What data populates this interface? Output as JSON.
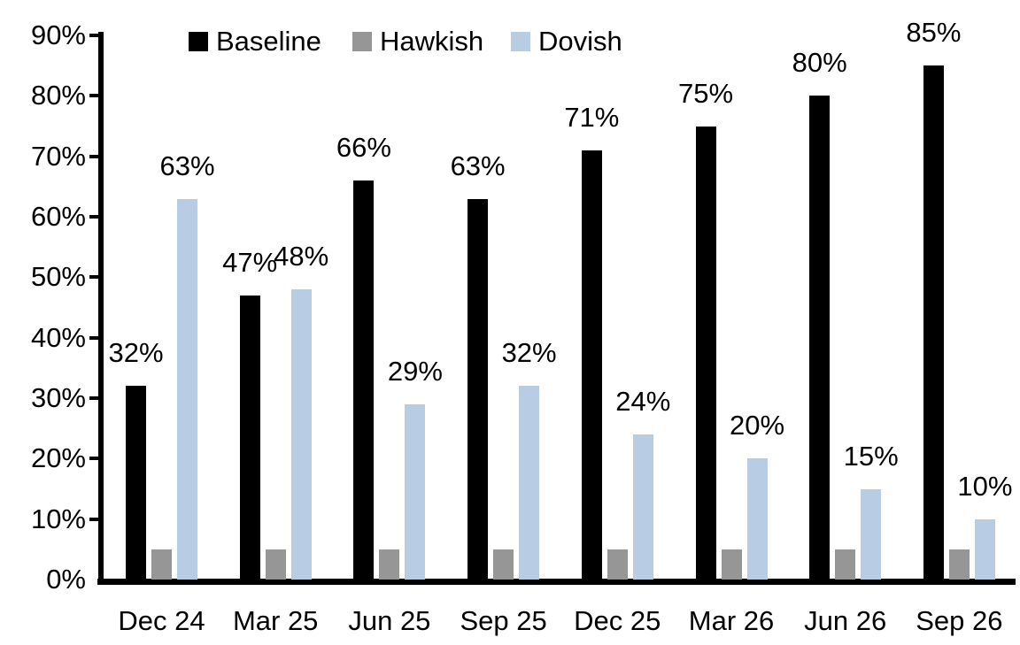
{
  "chart_data": {
    "type": "bar",
    "title": "",
    "xlabel": "",
    "ylabel": "",
    "categories": [
      "Dec 24",
      "Mar 25",
      "Jun 25",
      "Sep 25",
      "Dec 25",
      "Mar 26",
      "Jun 26",
      "Sep 26"
    ],
    "series": [
      {
        "name": "Baseline",
        "color": "#000000",
        "values": [
          32,
          47,
          66,
          63,
          71,
          75,
          80,
          85
        ],
        "data_labels": [
          "32%",
          "47%",
          "66%",
          "63%",
          "71%",
          "75%",
          "80%",
          "85%"
        ]
      },
      {
        "name": "Hawkish",
        "color": "#969696",
        "values": [
          5,
          5,
          5,
          5,
          5,
          5,
          5,
          5
        ],
        "data_labels": []
      },
      {
        "name": "Dovish",
        "color": "#B8CCE4",
        "values": [
          63,
          48,
          29,
          32,
          24,
          20,
          15,
          10
        ],
        "data_labels": [
          "63%",
          "48%",
          "29%",
          "32%",
          "24%",
          "20%",
          "15%",
          "10%"
        ]
      }
    ],
    "y_axis": {
      "min": 0,
      "max": 90,
      "tick_step": 10,
      "tick_labels": [
        "0%",
        "10%",
        "20%",
        "30%",
        "40%",
        "50%",
        "60%",
        "70%",
        "80%",
        "90%"
      ]
    },
    "legend": {
      "position": "top",
      "entries": [
        "Baseline",
        "Hawkish",
        "Dovish"
      ]
    },
    "grid": false,
    "label_format": "percent"
  }
}
